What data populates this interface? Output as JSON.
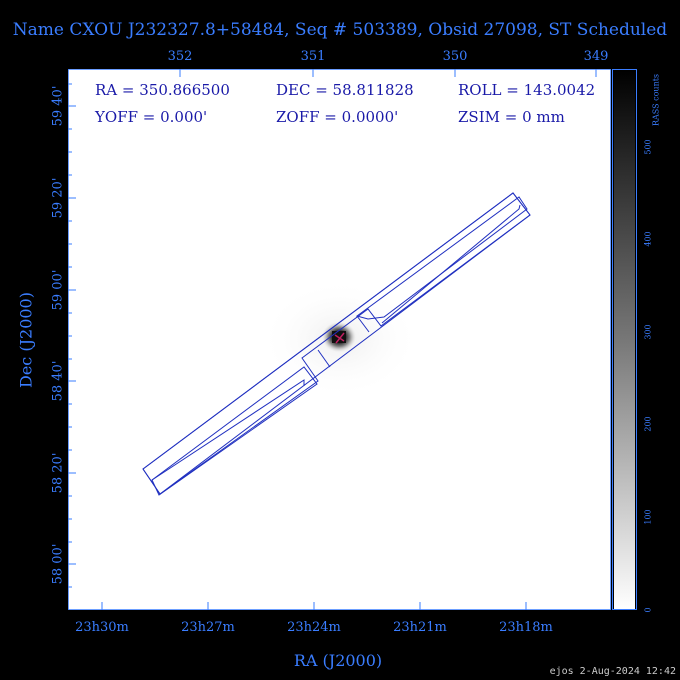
{
  "title": "Name CXOU J232327.8+58484, Seq # 503389, Obsid 27098, ST Scheduled",
  "top_ticks": [
    "352",
    "351",
    "350",
    "349"
  ],
  "left_ticks": [
    "59 40'",
    "59 20'",
    "59 00'",
    "58 40'",
    "58 20'",
    "58 00'"
  ],
  "bottom_ticks": [
    "23h30m",
    "23h27m",
    "23h24m",
    "23h21m",
    "23h18m"
  ],
  "xlabel": "RA (J2000)",
  "ylabel": "Dec (J2000)",
  "info": {
    "ra": "RA = 350.866500",
    "dec": "DEC = 58.811828",
    "roll": "ROLL = 143.0042",
    "yoff": "YOFF =    0.000'",
    "zoff": "ZOFF =   0.0000'",
    "zsim": "ZSIM = 0 mm"
  },
  "colorbar": {
    "label": "RASS counts",
    "ticks": [
      "0",
      "100",
      "200",
      "300",
      "400",
      "500"
    ]
  },
  "footer": "ejos  2-Aug-2024 12:42",
  "colors": {
    "axis": "#3a7dff",
    "text": "#1a1aa8",
    "footprint": "#2030c0"
  }
}
